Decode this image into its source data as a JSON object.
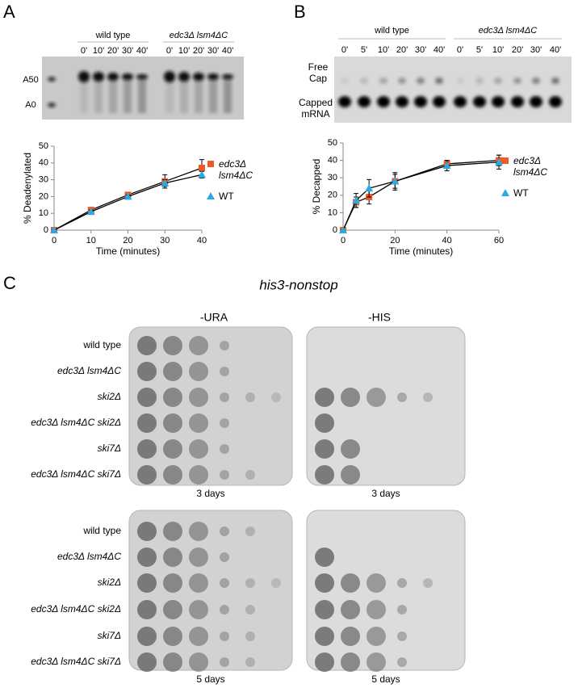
{
  "panels": {
    "a": "A",
    "b": "B",
    "c": "C"
  },
  "gel_a": {
    "groups": [
      "wild type",
      "edc3Δ lsm4ΔC"
    ],
    "times": [
      "0'",
      "10'",
      "20'",
      "30'",
      "40'"
    ],
    "bands": [
      "A50",
      "A0"
    ]
  },
  "gel_b": {
    "groups": [
      "wild type",
      "edc3Δ lsm4ΔC"
    ],
    "times": [
      "0'",
      "5'",
      "10'",
      "20'",
      "30'",
      "40'"
    ],
    "bands": [
      "Free Cap",
      "Capped mRNA"
    ]
  },
  "chart_data": [
    {
      "type": "line",
      "x_label": "Time (minutes)",
      "y_label": "% Deadenylated",
      "x": [
        0,
        10,
        20,
        30,
        40
      ],
      "xlim": [
        0,
        40
      ],
      "xticks": [
        0,
        10,
        20,
        30,
        40
      ],
      "ylim": [
        0,
        50
      ],
      "yticks": [
        0,
        10,
        20,
        30,
        40,
        50
      ],
      "line_color": "#000000",
      "series": [
        {
          "name": "edc3Δ lsm4ΔC",
          "color": "#f05a28",
          "marker": "square",
          "values": [
            0,
            12,
            21,
            29,
            37
          ],
          "errors": [
            0,
            1,
            1.5,
            4,
            5
          ]
        },
        {
          "name": "WT",
          "color": "#29abe2",
          "marker": "triangle",
          "values": [
            0,
            11,
            20,
            28,
            33
          ],
          "errors": [
            0,
            1,
            1,
            2,
            2
          ]
        }
      ]
    },
    {
      "type": "line",
      "x_label": "Time (minutes)",
      "y_label": "% Decapped",
      "x": [
        0,
        5,
        10,
        20,
        40,
        60
      ],
      "xlim": [
        0,
        60
      ],
      "xticks": [
        0,
        20,
        40,
        60
      ],
      "ylim": [
        0,
        50
      ],
      "yticks": [
        0,
        10,
        20,
        30,
        40,
        50
      ],
      "line_color": "#000000",
      "series": [
        {
          "name": "edc3Δ lsm4ΔC",
          "color": "#f05a28",
          "marker": "square",
          "values": [
            0,
            16,
            19,
            28,
            38,
            40
          ],
          "errors": [
            0,
            3,
            4,
            4,
            2,
            3
          ]
        },
        {
          "name": "WT",
          "color": "#29abe2",
          "marker": "triangle",
          "values": [
            0,
            17,
            24,
            28,
            37,
            39
          ],
          "errors": [
            0,
            4,
            5,
            5,
            3,
            4
          ]
        }
      ]
    }
  ],
  "plates": {
    "title": "his3-nonstop",
    "media": [
      "-URA",
      "-HIS"
    ],
    "strains": [
      "wild type",
      "edc3Δ lsm4ΔC",
      "ski2Δ",
      "edc3Δ lsm4ΔC ski2Δ",
      "ski7Δ",
      "edc3Δ lsm4ΔC ski7Δ"
    ],
    "times": [
      "3 days",
      "5 days"
    ]
  }
}
